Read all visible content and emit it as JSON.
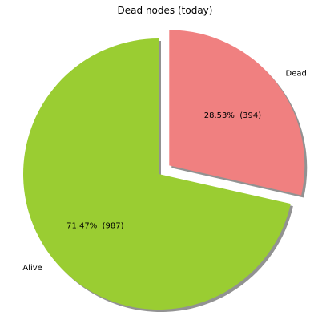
{
  "chart_data": {
    "type": "pie",
    "title": "Dead nodes (today)",
    "slices": [
      {
        "label": "Dead",
        "percent": 28.53,
        "count": 394,
        "percent_label": "28.53%  (394)",
        "color": "#f08080",
        "exploded": true
      },
      {
        "label": "Alive",
        "percent": 71.47,
        "count": 987,
        "percent_label": "71.47%  (987)",
        "color": "#9acd32",
        "exploded": false
      }
    ],
    "start_angle_deg": 90,
    "direction": "clockwise",
    "shadow": true,
    "edge_color": "#ffffff"
  }
}
